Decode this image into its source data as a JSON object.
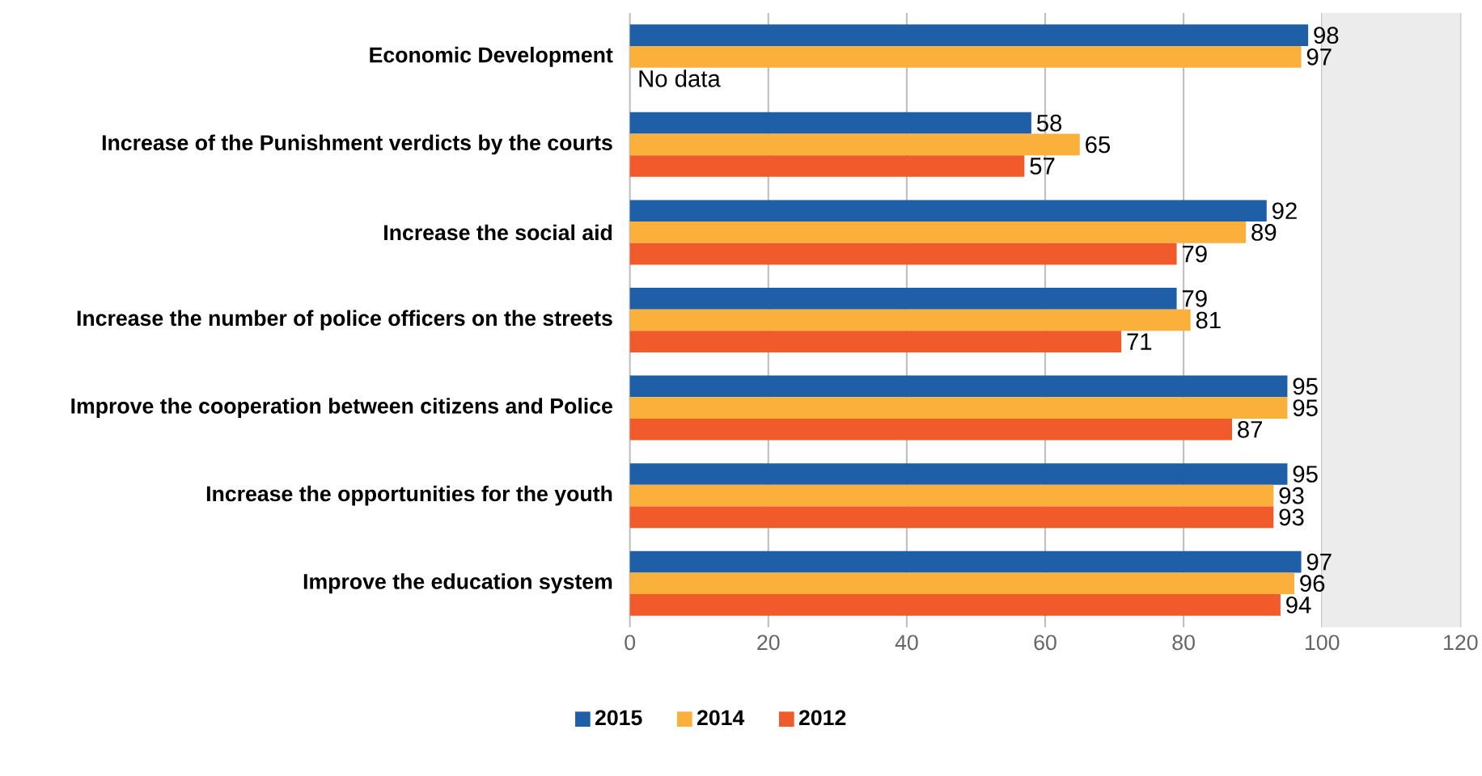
{
  "chart_data": {
    "type": "bar",
    "orientation": "horizontal",
    "categories": [
      "Economic Development",
      "Increase of the Punishment verdicts by the courts",
      "Increase the social aid",
      "Increase the number of police officers on the streets",
      "Improve the cooperation between citizens and Police",
      "Increase the opportunities for the youth",
      "Improve the education system"
    ],
    "series": [
      {
        "name": "2015",
        "color": "#1f5fa8",
        "values": [
          98,
          58,
          92,
          79,
          95,
          95,
          97
        ]
      },
      {
        "name": "2014",
        "color": "#fbb03b",
        "values": [
          97,
          65,
          89,
          81,
          95,
          93,
          96
        ]
      },
      {
        "name": "2012",
        "color": "#f15a2b",
        "values": [
          null,
          57,
          79,
          71,
          87,
          93,
          94
        ]
      }
    ],
    "xlim": [
      0,
      120
    ],
    "xticks": [
      0,
      20,
      40,
      60,
      80,
      100,
      120
    ],
    "grid": "x",
    "legend": "bottom",
    "data_labels": true,
    "bands": [
      {
        "axis": "x",
        "from": 100,
        "to": 120,
        "color": "#ececec"
      }
    ],
    "annotations": [
      "No data"
    ]
  }
}
